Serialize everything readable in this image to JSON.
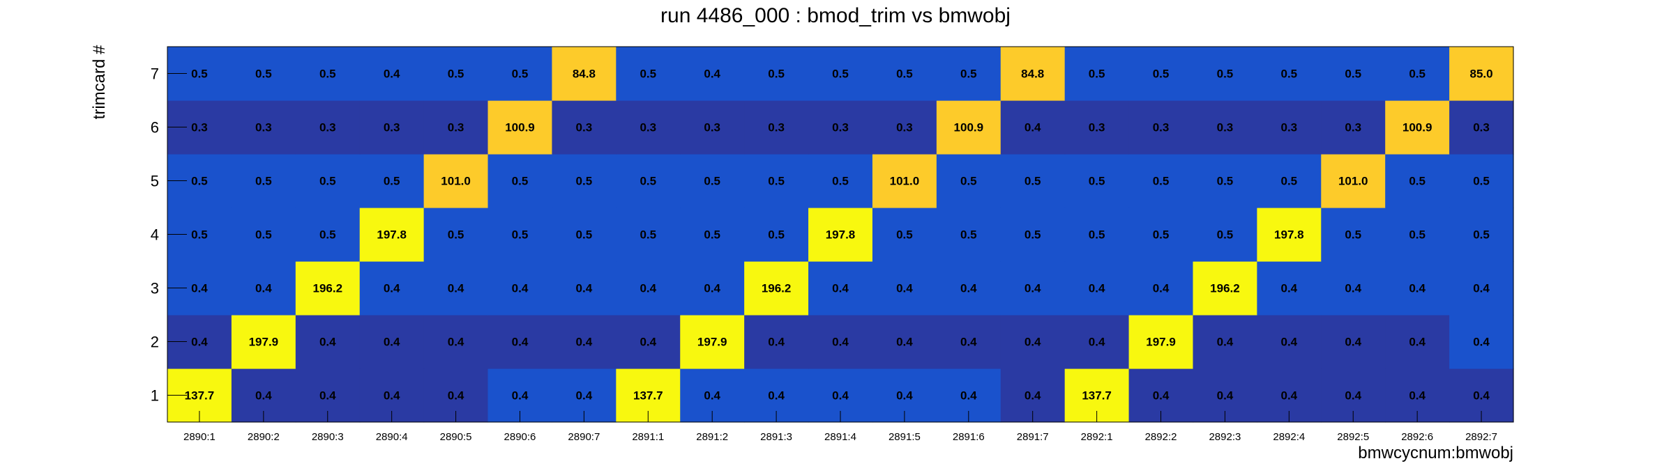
{
  "chart_data": {
    "type": "heatmap",
    "title": "run 4486_000 : bmod_trim vs bmwobj",
    "xlabel": "bmwcycnum:bmwobj",
    "ylabel": "trimcard #",
    "categories": [
      "2890:1",
      "2890:2",
      "2890:3",
      "2890:4",
      "2890:5",
      "2890:6",
      "2890:7",
      "2891:1",
      "2891:2",
      "2891:3",
      "2891:4",
      "2891:5",
      "2891:6",
      "2891:7",
      "2892:1",
      "2892:2",
      "2892:3",
      "2892:4",
      "2892:5",
      "2892:6",
      "2892:7"
    ],
    "y": [
      "1",
      "2",
      "3",
      "4",
      "5",
      "6",
      "7"
    ],
    "labels": [
      [
        "137.7",
        "0.4",
        "0.4",
        "0.4",
        "0.4",
        "0.4",
        "0.4",
        "137.7",
        "0.4",
        "0.4",
        "0.4",
        "0.4",
        "0.4",
        "0.4",
        "137.7",
        "0.4",
        "0.4",
        "0.4",
        "0.4",
        "0.4",
        "0.4"
      ],
      [
        "0.4",
        "197.9",
        "0.4",
        "0.4",
        "0.4",
        "0.4",
        "0.4",
        "0.4",
        "197.9",
        "0.4",
        "0.4",
        "0.4",
        "0.4",
        "0.4",
        "0.4",
        "197.9",
        "0.4",
        "0.4",
        "0.4",
        "0.4",
        "0.4"
      ],
      [
        "0.4",
        "0.4",
        "196.2",
        "0.4",
        "0.4",
        "0.4",
        "0.4",
        "0.4",
        "0.4",
        "196.2",
        "0.4",
        "0.4",
        "0.4",
        "0.4",
        "0.4",
        "0.4",
        "196.2",
        "0.4",
        "0.4",
        "0.4",
        "0.4"
      ],
      [
        "0.5",
        "0.5",
        "0.5",
        "197.8",
        "0.5",
        "0.5",
        "0.5",
        "0.5",
        "0.5",
        "0.5",
        "197.8",
        "0.5",
        "0.5",
        "0.5",
        "0.5",
        "0.5",
        "0.5",
        "197.8",
        "0.5",
        "0.5",
        "0.5"
      ],
      [
        "0.5",
        "0.5",
        "0.5",
        "0.5",
        "101.0",
        "0.5",
        "0.5",
        "0.5",
        "0.5",
        "0.5",
        "0.5",
        "101.0",
        "0.5",
        "0.5",
        "0.5",
        "0.5",
        "0.5",
        "0.5",
        "101.0",
        "0.5",
        "0.5"
      ],
      [
        "0.3",
        "0.3",
        "0.3",
        "0.3",
        "0.3",
        "100.9",
        "0.3",
        "0.3",
        "0.3",
        "0.3",
        "0.3",
        "0.3",
        "100.9",
        "0.4",
        "0.3",
        "0.3",
        "0.3",
        "0.3",
        "0.3",
        "100.9",
        "0.3"
      ],
      [
        "0.5",
        "0.5",
        "0.5",
        "0.4",
        "0.5",
        "0.5",
        "84.8",
        "0.5",
        "0.4",
        "0.5",
        "0.5",
        "0.5",
        "0.5",
        "84.8",
        "0.5",
        "0.5",
        "0.5",
        "0.5",
        "0.5",
        "0.5",
        "85.0"
      ]
    ],
    "colors": {
      "dark_blue": "#2a3aa3",
      "blue": "#1a52cc",
      "orange_yellow": "#fdcb2a",
      "yellow": "#f8f80f"
    },
    "legend": "none",
    "grid": false
  }
}
